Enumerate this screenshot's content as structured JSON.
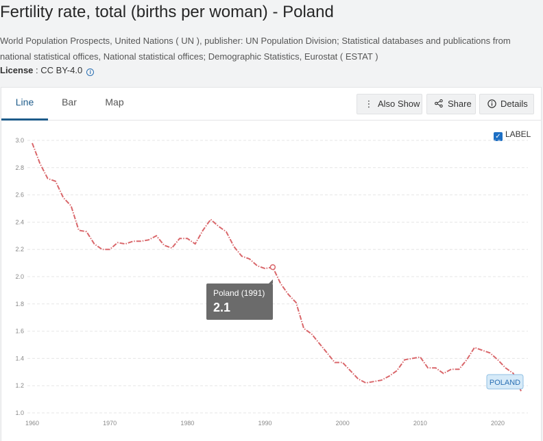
{
  "header": {
    "title": "Fertility rate, total (births per woman) - Poland",
    "source": "World Population Prospects, United Nations ( UN ), publisher: UN Population Division; Statistical databases and publications from national statistical offices, National statistical offices; Demographic Statistics, Eurostat ( ESTAT )",
    "license_label": "License",
    "license_value": " : CC BY-4.0"
  },
  "tabs": [
    {
      "label": "Line"
    },
    {
      "label": "Bar"
    },
    {
      "label": "Map"
    }
  ],
  "toolbar": {
    "also_show": "Also Show",
    "share": "Share",
    "details": "Details"
  },
  "label_toggle": "LABEL",
  "tooltip": {
    "title": "Poland (1991)",
    "value": "2.1"
  },
  "series_label": "POLAND",
  "colors": {
    "line": "#d9666a",
    "accent": "#1d5b8a"
  },
  "chart_data": {
    "type": "line",
    "title": "Fertility rate, total (births per woman) - Poland",
    "xlabel": "",
    "ylabel": "",
    "xlim": [
      1960,
      2023
    ],
    "ylim": [
      1.0,
      3.0
    ],
    "x_ticks": [
      1960,
      1970,
      1980,
      1990,
      2000,
      2010,
      2020
    ],
    "y_ticks": [
      "1.0",
      "1.2",
      "1.4",
      "1.6",
      "1.8",
      "2.0",
      "2.2",
      "2.4",
      "2.6",
      "2.8",
      "3.0"
    ],
    "series": [
      {
        "name": "Poland",
        "x": [
          1960,
          1961,
          1962,
          1963,
          1964,
          1965,
          1966,
          1967,
          1968,
          1969,
          1970,
          1971,
          1972,
          1973,
          1974,
          1975,
          1976,
          1977,
          1978,
          1979,
          1980,
          1981,
          1982,
          1983,
          1984,
          1985,
          1986,
          1987,
          1988,
          1989,
          1990,
          1991,
          1992,
          1993,
          1994,
          1995,
          1996,
          1997,
          1998,
          1999,
          2000,
          2001,
          2002,
          2003,
          2004,
          2005,
          2006,
          2007,
          2008,
          2009,
          2010,
          2011,
          2012,
          2013,
          2014,
          2015,
          2016,
          2017,
          2018,
          2019,
          2020,
          2021,
          2022,
          2023
        ],
        "values": [
          2.98,
          2.83,
          2.72,
          2.7,
          2.58,
          2.52,
          2.34,
          2.33,
          2.24,
          2.2,
          2.2,
          2.25,
          2.24,
          2.26,
          2.26,
          2.27,
          2.3,
          2.23,
          2.21,
          2.28,
          2.28,
          2.24,
          2.34,
          2.42,
          2.37,
          2.33,
          2.22,
          2.15,
          2.13,
          2.08,
          2.06,
          2.07,
          1.95,
          1.87,
          1.81,
          1.62,
          1.58,
          1.51,
          1.44,
          1.37,
          1.37,
          1.31,
          1.25,
          1.22,
          1.23,
          1.24,
          1.27,
          1.31,
          1.39,
          1.4,
          1.41,
          1.33,
          1.33,
          1.29,
          1.32,
          1.32,
          1.39,
          1.48,
          1.46,
          1.44,
          1.39,
          1.33,
          1.29,
          1.16
        ]
      }
    ]
  }
}
